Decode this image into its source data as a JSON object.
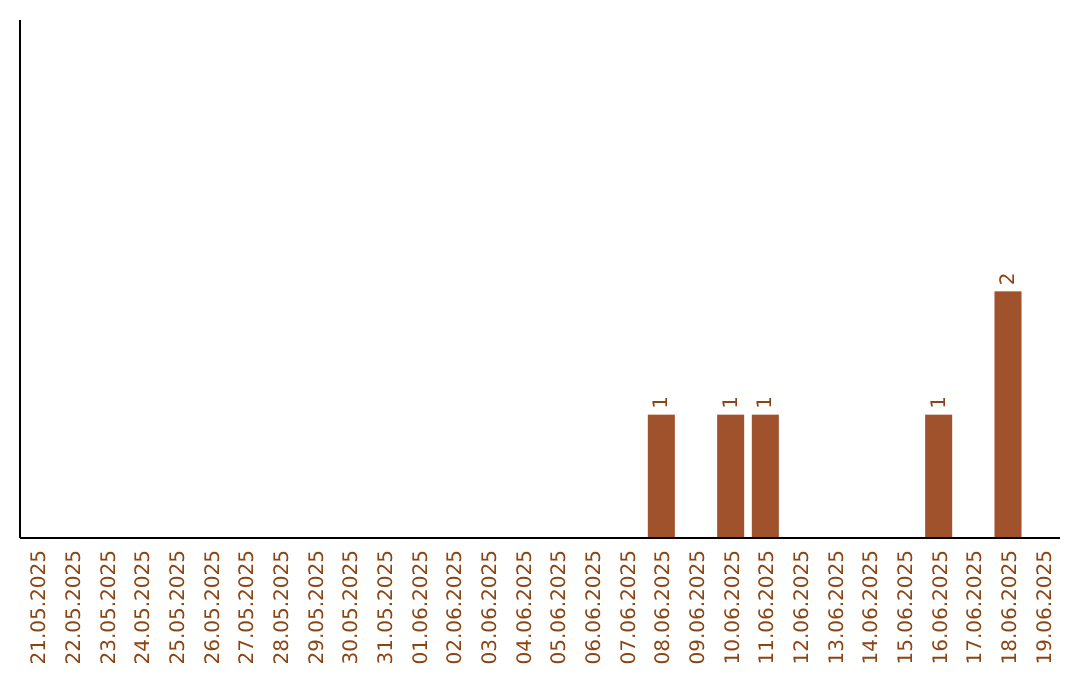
{
  "chart_data": {
    "type": "bar",
    "categories": [
      "21.05.2025",
      "22.05.2025",
      "23.05.2025",
      "24.05.2025",
      "25.05.2025",
      "26.05.2025",
      "27.05.2025",
      "28.05.2025",
      "29.05.2025",
      "30.05.2025",
      "31.05.2025",
      "01.06.2025",
      "02.06.2025",
      "03.06.2025",
      "04.06.2025",
      "05.06.2025",
      "06.06.2025",
      "07.06.2025",
      "08.06.2025",
      "09.06.2025",
      "10.06.2025",
      "11.06.2025",
      "12.06.2025",
      "13.06.2025",
      "14.06.2025",
      "15.06.2025",
      "16.06.2025",
      "17.06.2025",
      "18.06.2025",
      "19.06.2025"
    ],
    "values": [
      null,
      null,
      null,
      null,
      null,
      null,
      null,
      null,
      null,
      null,
      null,
      null,
      null,
      null,
      null,
      null,
      null,
      null,
      1,
      null,
      1,
      1,
      null,
      null,
      null,
      null,
      1,
      null,
      2,
      null
    ],
    "data_labels": true,
    "ylim": [
      0,
      4.2
    ],
    "color": "#a0522d",
    "tick_labels": "x"
  }
}
